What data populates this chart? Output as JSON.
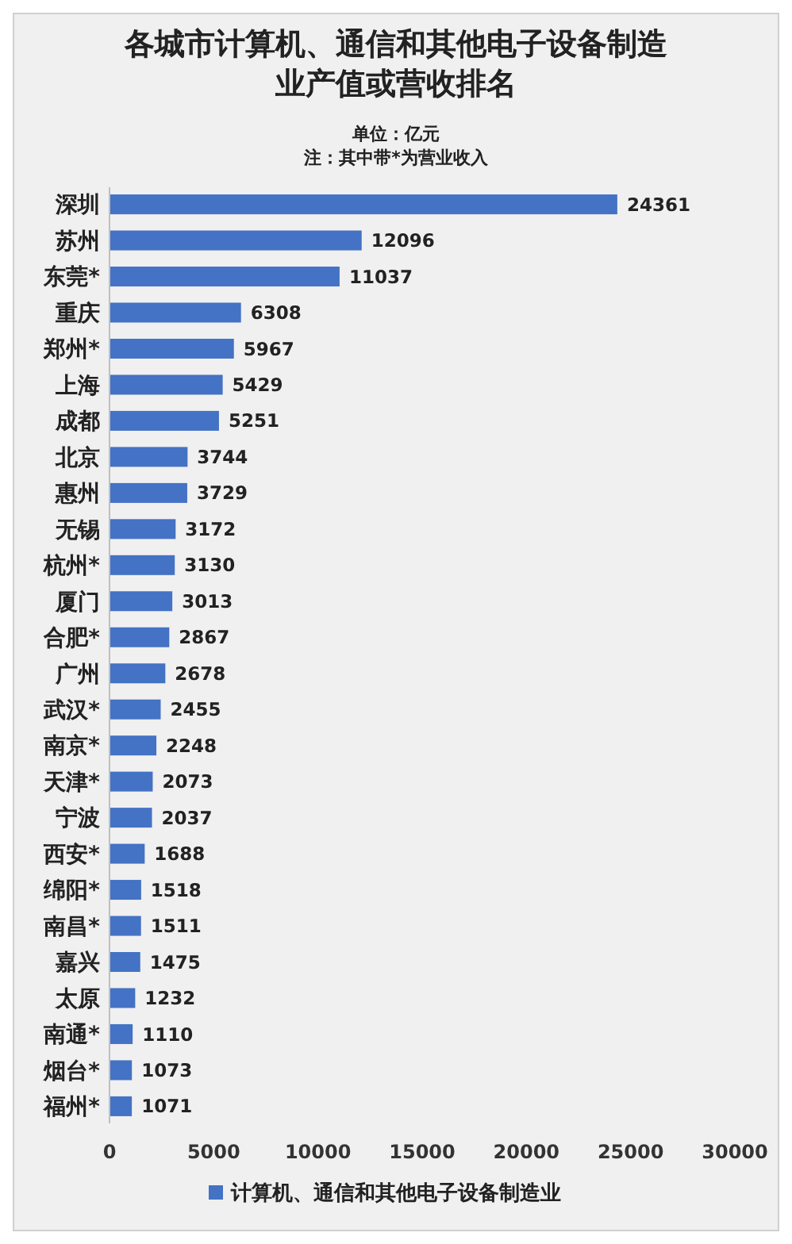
{
  "chart_data": {
    "type": "bar",
    "orientation": "horizontal",
    "title": "各城市计算机、通信和其他电子设备制造业产值或营收排名",
    "subtitle": "单位：亿元",
    "annotations": [
      "注：其中带*为营业收入"
    ],
    "categories": [
      "深圳",
      "苏州",
      "东莞*",
      "重庆",
      "郑州*",
      "上海",
      "成都",
      "北京",
      "惠州",
      "无锡",
      "杭州*",
      "厦门",
      "合肥*",
      "广州",
      "武汉*",
      "南京*",
      "天津*",
      "宁波",
      "西安*",
      "绵阳*",
      "南昌*",
      "嘉兴",
      "太原",
      "南通*",
      "烟台*",
      "福州*"
    ],
    "series": [
      {
        "name": "计算机、通信和其他电子设备制造业",
        "color": "#4472c4",
        "values": [
          24361,
          12096,
          11037,
          6308,
          5967,
          5429,
          5251,
          3744,
          3729,
          3172,
          3130,
          3013,
          2867,
          2678,
          2455,
          2248,
          2073,
          2037,
          1688,
          1518,
          1511,
          1475,
          1232,
          1110,
          1073,
          1071
        ]
      }
    ],
    "xlim": [
      0,
      30000
    ],
    "xticks": [
      0,
      5000,
      10000,
      15000,
      20000,
      25000,
      30000
    ],
    "grid": false,
    "data_labels": true,
    "legend": "bottom"
  }
}
